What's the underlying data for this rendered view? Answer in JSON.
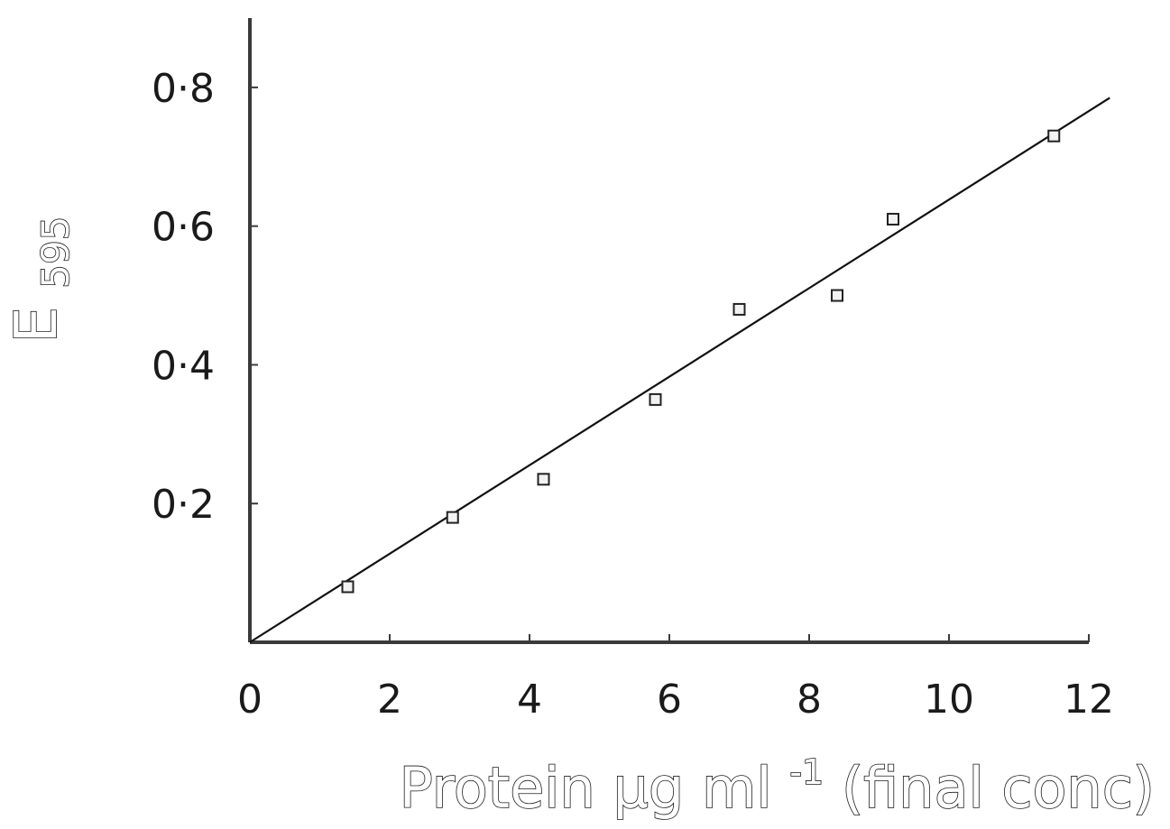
{
  "chart_data": {
    "type": "scatter",
    "title": "",
    "xlabel": "Protein µg ml⁻¹ (final conc)",
    "xlabel_main": "Protein µg ml",
    "xlabel_sup": "-1",
    "xlabel_tail": " (final conc)",
    "ylabel": "E595",
    "ylabel_main": "E",
    "ylabel_sub": "595",
    "xlim": [
      0,
      12
    ],
    "ylim": [
      0,
      0.9
    ],
    "xticks": [
      0,
      2,
      4,
      6,
      8,
      10,
      12
    ],
    "xtick_labels": [
      "0",
      "2",
      "4",
      "6",
      "8",
      "10",
      "12"
    ],
    "yticks": [
      0.2,
      0.4,
      0.6,
      0.8
    ],
    "ytick_labels": [
      "0·2",
      "0·4",
      "0·6",
      "0·8"
    ],
    "grid": false,
    "series": [
      {
        "marker": "square",
        "x": [
          1.4,
          2.9,
          4.2,
          5.8,
          7.0,
          8.4,
          9.2,
          11.5
        ],
        "y": [
          0.08,
          0.18,
          0.235,
          0.35,
          0.48,
          0.5,
          0.61,
          0.73
        ]
      }
    ],
    "fit_line": {
      "x": [
        0,
        12.3
      ],
      "y": [
        0,
        0.785
      ]
    },
    "colors": {
      "axis": "#3a3a3a",
      "line": "#111111",
      "marker_fill": "#f2f2f2",
      "marker_stroke": "#222222"
    }
  }
}
